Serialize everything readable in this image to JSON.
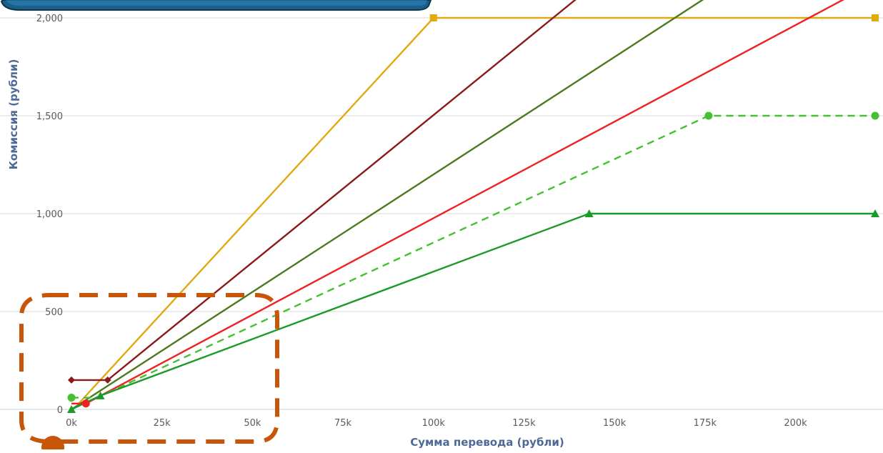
{
  "chart_data": {
    "type": "line",
    "title": "",
    "xlabel": "Сумма перевода (рубли)",
    "ylabel": "Комиссия (рубли)",
    "xlim": [
      0,
      222000
    ],
    "ylim": [
      0,
      2000
    ],
    "x_ticks": [
      0,
      25000,
      50000,
      75000,
      100000,
      125000,
      150000,
      175000,
      200000
    ],
    "x_tick_labels": [
      "0k",
      "25k",
      "50k",
      "75k",
      "100k",
      "125k",
      "150k",
      "175k",
      "200k"
    ],
    "y_ticks": [
      0,
      500,
      1000,
      1500,
      2000
    ],
    "y_tick_labels": [
      "0",
      "500",
      "1,000",
      "1,500",
      "2,000"
    ],
    "grid": true,
    "legend": "none",
    "series": [
      {
        "color": "#e0aa10",
        "dash": false,
        "marker": "square",
        "points": [
          [
            0,
            30
          ],
          [
            2000,
            30
          ],
          [
            100000,
            2000
          ],
          [
            222000,
            2000
          ]
        ],
        "marked": [
          [
            100000,
            2000
          ],
          [
            222000,
            2000
          ]
        ]
      },
      {
        "color": "#8b1a1a",
        "dash": false,
        "marker": "diamond",
        "points": [
          [
            0,
            150
          ],
          [
            10000,
            150
          ],
          [
            10000,
            150
          ],
          [
            143000,
            2150
          ]
        ],
        "marked": [
          [
            0,
            150
          ],
          [
            10000,
            150
          ]
        ]
      },
      {
        "color": "#4d7a1e",
        "dash": false,
        "marker": "none",
        "points": [
          [
            0,
            0
          ],
          [
            175000,
            2100
          ]
        ],
        "marked": []
      },
      {
        "color": "#ee2222",
        "dash": false,
        "marker": "circle",
        "points": [
          [
            0,
            30
          ],
          [
            4000,
            30
          ],
          [
            222000,
            2180
          ]
        ],
        "marked": [
          [
            4000,
            30
          ]
        ]
      },
      {
        "color": "#44c030",
        "dash": true,
        "marker": "circle",
        "points": [
          [
            0,
            60
          ],
          [
            7000,
            60
          ],
          [
            176000,
            1500
          ],
          [
            222000,
            1500
          ]
        ],
        "marked": [
          [
            0,
            60
          ],
          [
            176000,
            1500
          ],
          [
            222000,
            1500
          ]
        ]
      },
      {
        "color": "#1c9a28",
        "dash": false,
        "marker": "triangle",
        "points": [
          [
            0,
            0
          ],
          [
            8000,
            70
          ],
          [
            143000,
            1000
          ],
          [
            222000,
            1000
          ]
        ],
        "marked": [
          [
            0,
            0
          ],
          [
            8000,
            70
          ],
          [
            143000,
            1000
          ],
          [
            222000,
            1000
          ]
        ]
      }
    ]
  },
  "overlay": {
    "banner_color": "#1a5f8a",
    "highlight_color": "#c8560a"
  }
}
